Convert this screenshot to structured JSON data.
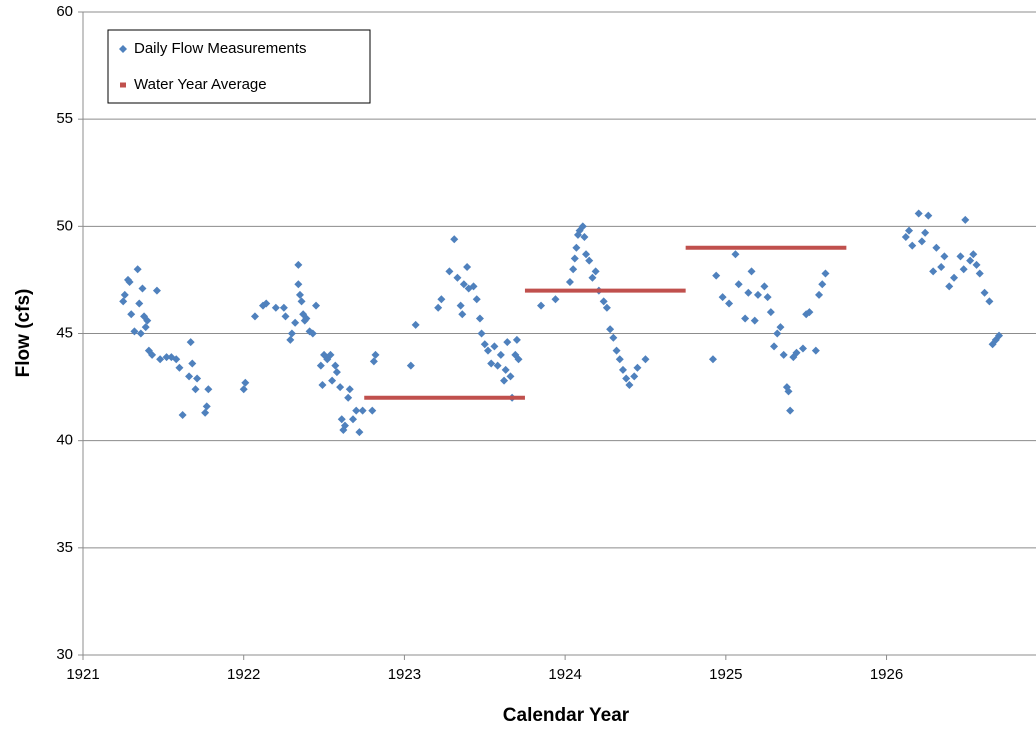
{
  "chart_data": {
    "type": "scatter",
    "x_label": "Calendar Year",
    "y_label": "Flow (cfs)",
    "xlim": [
      1921,
      1926.93
    ],
    "xticks": [
      1921,
      1922,
      1923,
      1924,
      1925,
      1926
    ],
    "ylim": [
      30,
      60
    ],
    "yticks": [
      30,
      35,
      40,
      45,
      50,
      55,
      60
    ],
    "grid": true,
    "legend": "upper left",
    "series": [
      {
        "name": "Daily Flow Measurements",
        "type": "scatter",
        "color": "#4f81bd",
        "x": [
          1921.25,
          1921.26,
          1921.28,
          1921.29,
          1921.3,
          1921.32,
          1921.34,
          1921.35,
          1921.36,
          1921.37,
          1921.38,
          1921.39,
          1921.4,
          1921.41,
          1921.43,
          1921.46,
          1921.48,
          1921.52,
          1921.55,
          1921.58,
          1921.6,
          1921.62,
          1921.66,
          1921.67,
          1921.68,
          1921.7,
          1921.71,
          1921.76,
          1921.77,
          1921.78,
          1922.0,
          1922.01,
          1922.07,
          1922.12,
          1922.14,
          1922.2,
          1922.25,
          1922.26,
          1922.29,
          1922.3,
          1922.32,
          1922.34,
          1922.34,
          1922.35,
          1922.36,
          1922.37,
          1922.38,
          1922.39,
          1922.41,
          1922.43,
          1922.45,
          1922.48,
          1922.49,
          1922.5,
          1922.52,
          1922.54,
          1922.55,
          1922.57,
          1922.58,
          1922.6,
          1922.61,
          1922.62,
          1922.63,
          1922.65,
          1922.66,
          1922.68,
          1922.7,
          1922.72,
          1922.74,
          1922.8,
          1922.81,
          1922.82,
          1923.04,
          1923.07,
          1923.21,
          1923.23,
          1923.28,
          1923.31,
          1923.33,
          1923.35,
          1923.36,
          1923.37,
          1923.39,
          1923.4,
          1923.43,
          1923.45,
          1923.47,
          1923.48,
          1923.5,
          1923.52,
          1923.54,
          1923.56,
          1923.58,
          1923.6,
          1923.62,
          1923.63,
          1923.64,
          1923.66,
          1923.67,
          1923.69,
          1923.7,
          1923.71,
          1923.85,
          1923.94,
          1924.03,
          1924.05,
          1924.06,
          1924.07,
          1924.08,
          1924.09,
          1924.11,
          1924.12,
          1924.13,
          1924.15,
          1924.17,
          1924.19,
          1924.21,
          1924.24,
          1924.26,
          1924.28,
          1924.3,
          1924.32,
          1924.34,
          1924.36,
          1924.38,
          1924.4,
          1924.43,
          1924.45,
          1924.5,
          1924.92,
          1924.94,
          1924.98,
          1925.02,
          1925.06,
          1925.08,
          1925.12,
          1925.14,
          1925.16,
          1925.18,
          1925.2,
          1925.24,
          1925.26,
          1925.28,
          1925.3,
          1925.32,
          1925.34,
          1925.36,
          1925.38,
          1925.39,
          1925.4,
          1925.42,
          1925.44,
          1925.48,
          1925.5,
          1925.52,
          1925.56,
          1925.58,
          1925.6,
          1925.62,
          1926.12,
          1926.14,
          1926.16,
          1926.2,
          1926.22,
          1926.24,
          1926.26,
          1926.29,
          1926.31,
          1926.34,
          1926.36,
          1926.39,
          1926.42,
          1926.46,
          1926.48,
          1926.49,
          1926.52,
          1926.54,
          1926.56,
          1926.58,
          1926.61,
          1926.64,
          1926.66,
          1926.68,
          1926.7
        ],
        "values": [
          46.5,
          46.8,
          47.5,
          47.4,
          45.9,
          45.1,
          48.0,
          46.4,
          45.0,
          47.1,
          45.8,
          45.3,
          45.6,
          44.2,
          44.0,
          47.0,
          43.8,
          43.9,
          43.9,
          43.8,
          43.4,
          41.2,
          43.0,
          44.6,
          43.6,
          42.4,
          42.9,
          41.3,
          41.6,
          42.4,
          42.4,
          42.7,
          45.8,
          46.3,
          46.4,
          46.2,
          46.2,
          45.8,
          44.7,
          45.0,
          45.5,
          48.2,
          47.3,
          46.8,
          46.5,
          45.9,
          45.6,
          45.7,
          45.1,
          45.0,
          46.3,
          43.5,
          42.6,
          44.0,
          43.8,
          44.0,
          42.8,
          43.5,
          43.2,
          42.5,
          41.0,
          40.5,
          40.7,
          42.0,
          42.4,
          41.0,
          41.4,
          40.4,
          41.4,
          41.4,
          43.7,
          44.0,
          43.5,
          45.4,
          46.2,
          46.6,
          47.9,
          49.4,
          47.6,
          46.3,
          45.9,
          47.3,
          48.1,
          47.1,
          47.2,
          46.6,
          45.7,
          45.0,
          44.5,
          44.2,
          43.6,
          44.4,
          43.5,
          44.0,
          42.8,
          43.3,
          44.6,
          43.0,
          42.0,
          44.0,
          44.7,
          43.8,
          46.3,
          46.6,
          47.4,
          48.0,
          48.5,
          49.0,
          49.6,
          49.8,
          50.0,
          49.5,
          48.7,
          48.4,
          47.6,
          47.9,
          47.0,
          46.5,
          46.2,
          45.2,
          44.8,
          44.2,
          43.8,
          43.3,
          42.9,
          42.6,
          43.0,
          43.4,
          43.8,
          43.8,
          47.7,
          46.7,
          46.4,
          48.7,
          47.3,
          45.7,
          46.9,
          47.9,
          45.6,
          46.8,
          47.2,
          46.7,
          46.0,
          44.4,
          45.0,
          45.3,
          44.0,
          42.5,
          42.3,
          41.4,
          43.9,
          44.1,
          44.3,
          45.9,
          46.0,
          44.2,
          46.8,
          47.3,
          47.8,
          49.5,
          49.8,
          49.1,
          50.6,
          49.3,
          49.7,
          50.5,
          47.9,
          49.0,
          48.1,
          48.6,
          47.2,
          47.6,
          48.6,
          48.0,
          50.3,
          48.4,
          48.7,
          48.2,
          47.8,
          46.9,
          46.5,
          44.5,
          44.7,
          44.9
        ]
      },
      {
        "name": "Water Year Average",
        "type": "line",
        "color": "#c0504d",
        "x": [
          1922.75,
          1923.75,
          null,
          1923.75,
          1924.75,
          null,
          1924.75,
          1925.75
        ],
        "values": [
          42,
          42,
          null,
          47,
          47,
          null,
          49,
          49
        ]
      }
    ]
  }
}
